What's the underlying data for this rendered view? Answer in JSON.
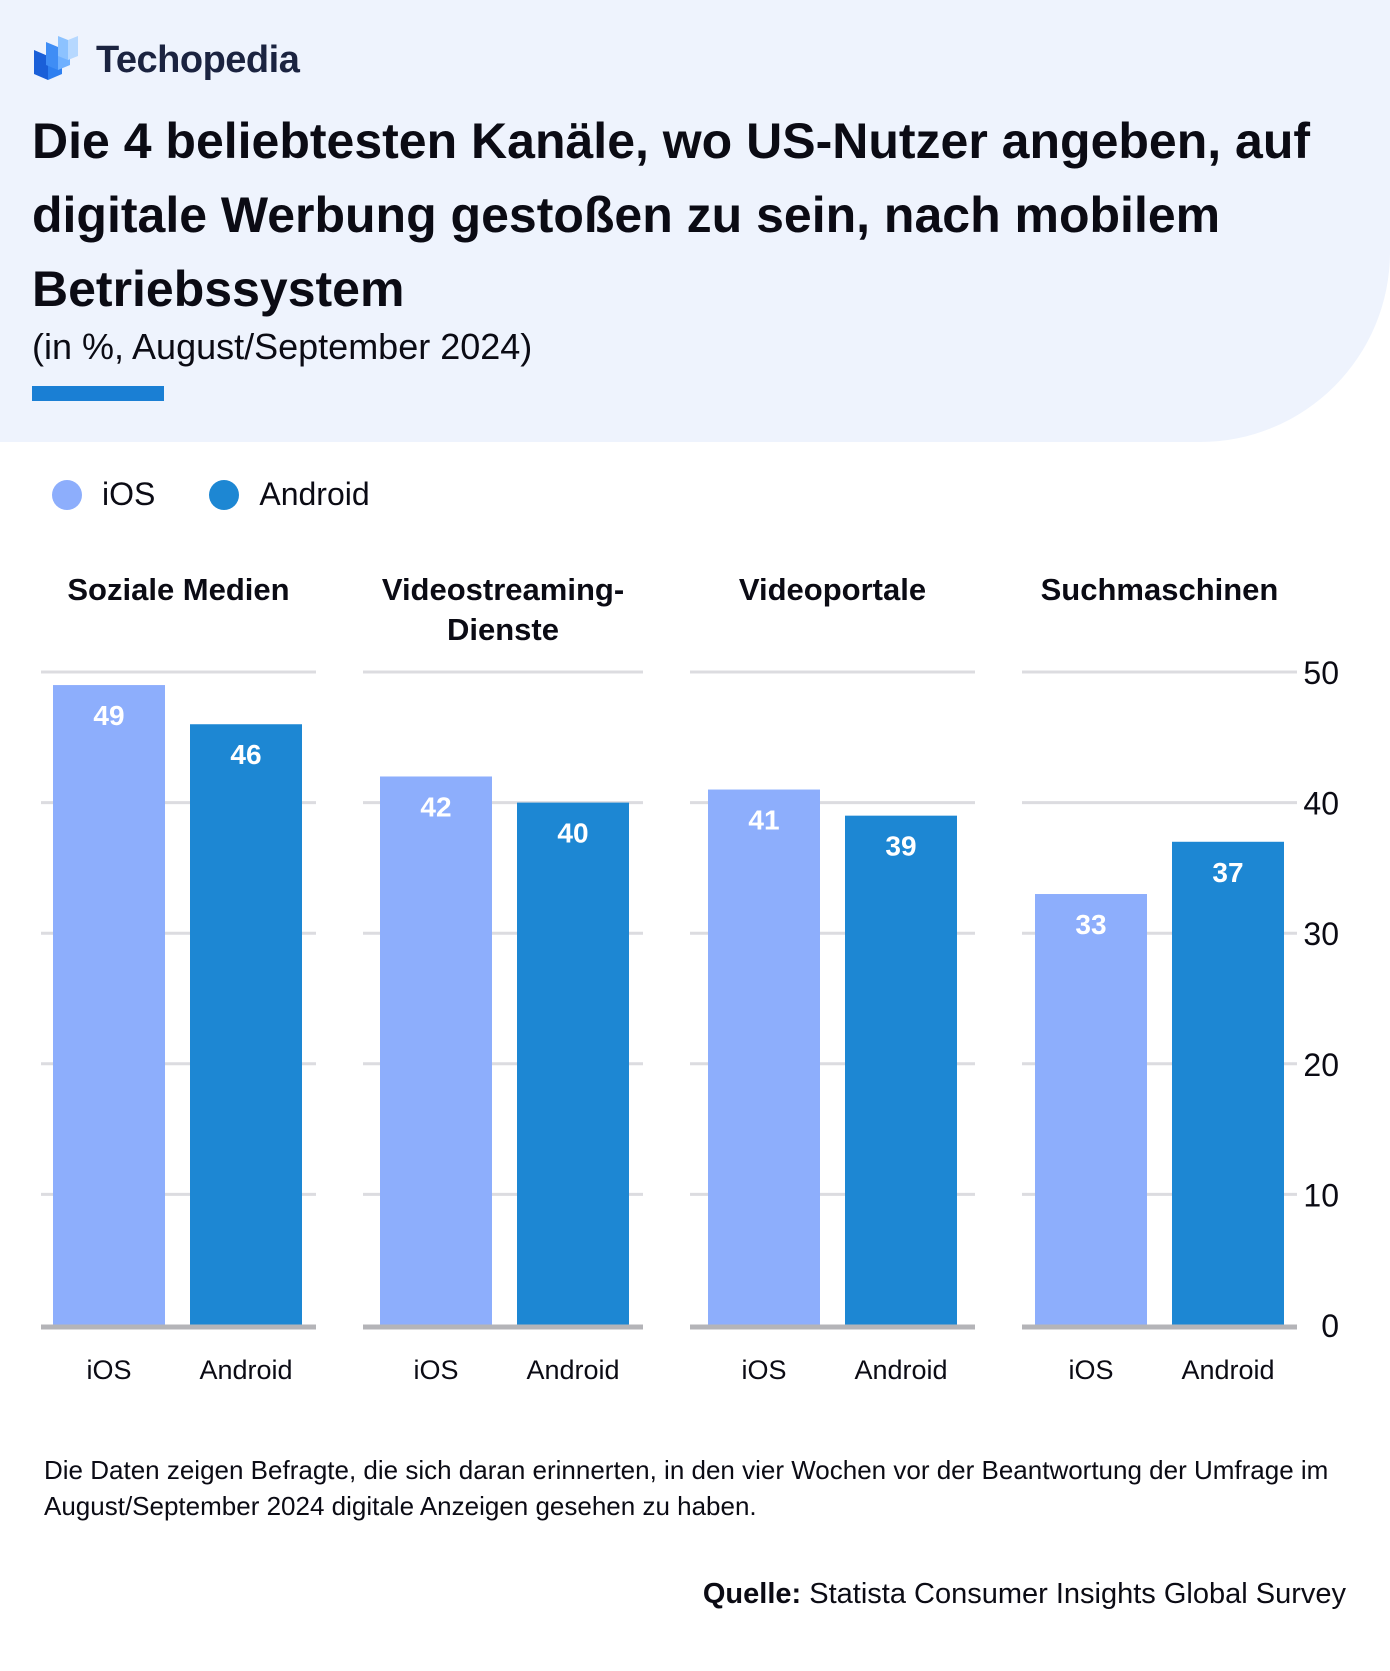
{
  "brand": {
    "name": "Techopedia"
  },
  "header": {
    "title": "Die 4 beliebtesten Kanäle, wo US-Nutzer angeben, auf digitale Werbung gestoßen zu sein, nach mobilem Betriebssystem",
    "subtitle": "(in %, August/September 2024)"
  },
  "colors": {
    "ios": "#8daefc",
    "android": "#1d87d3",
    "accent": "#1a7fd4",
    "grid": "#dcdce0",
    "baseline": "#b4b4b8"
  },
  "chart_data": {
    "type": "bar",
    "title": "Die 4 beliebtesten Kanäle, wo US-Nutzer angeben, auf digitale Werbung gestoßen zu sein, nach mobilem Betriebssystem",
    "subtitle": "(in %, August/September 2024)",
    "categories": [
      "Soziale Medien",
      "Videostreaming-Dienste",
      "Videoportale",
      "Suchmaschinen"
    ],
    "category_lines": [
      [
        "Soziale Medien"
      ],
      [
        "Videostreaming-",
        "Dienste"
      ],
      [
        "Videoportale"
      ],
      [
        "Suchmaschinen"
      ]
    ],
    "series": [
      {
        "name": "iOS",
        "values": [
          49,
          42,
          41,
          33
        ]
      },
      {
        "name": "Android",
        "values": [
          46,
          40,
          39,
          37
        ]
      }
    ],
    "ylim": [
      0,
      50
    ],
    "yticks": [
      0,
      10,
      20,
      30,
      40,
      50
    ],
    "grid": true,
    "legend": "top-left",
    "xlabel": "",
    "ylabel": ""
  },
  "footnote": "Die Daten zeigen Befragte, die sich daran erinnerten, in den vier Wochen vor der Beantwortung der Umfrage im August/September 2024 digitale Anzeigen gesehen zu haben.",
  "source": {
    "label": "Quelle:",
    "text": "Statista Consumer Insights Global Survey"
  }
}
